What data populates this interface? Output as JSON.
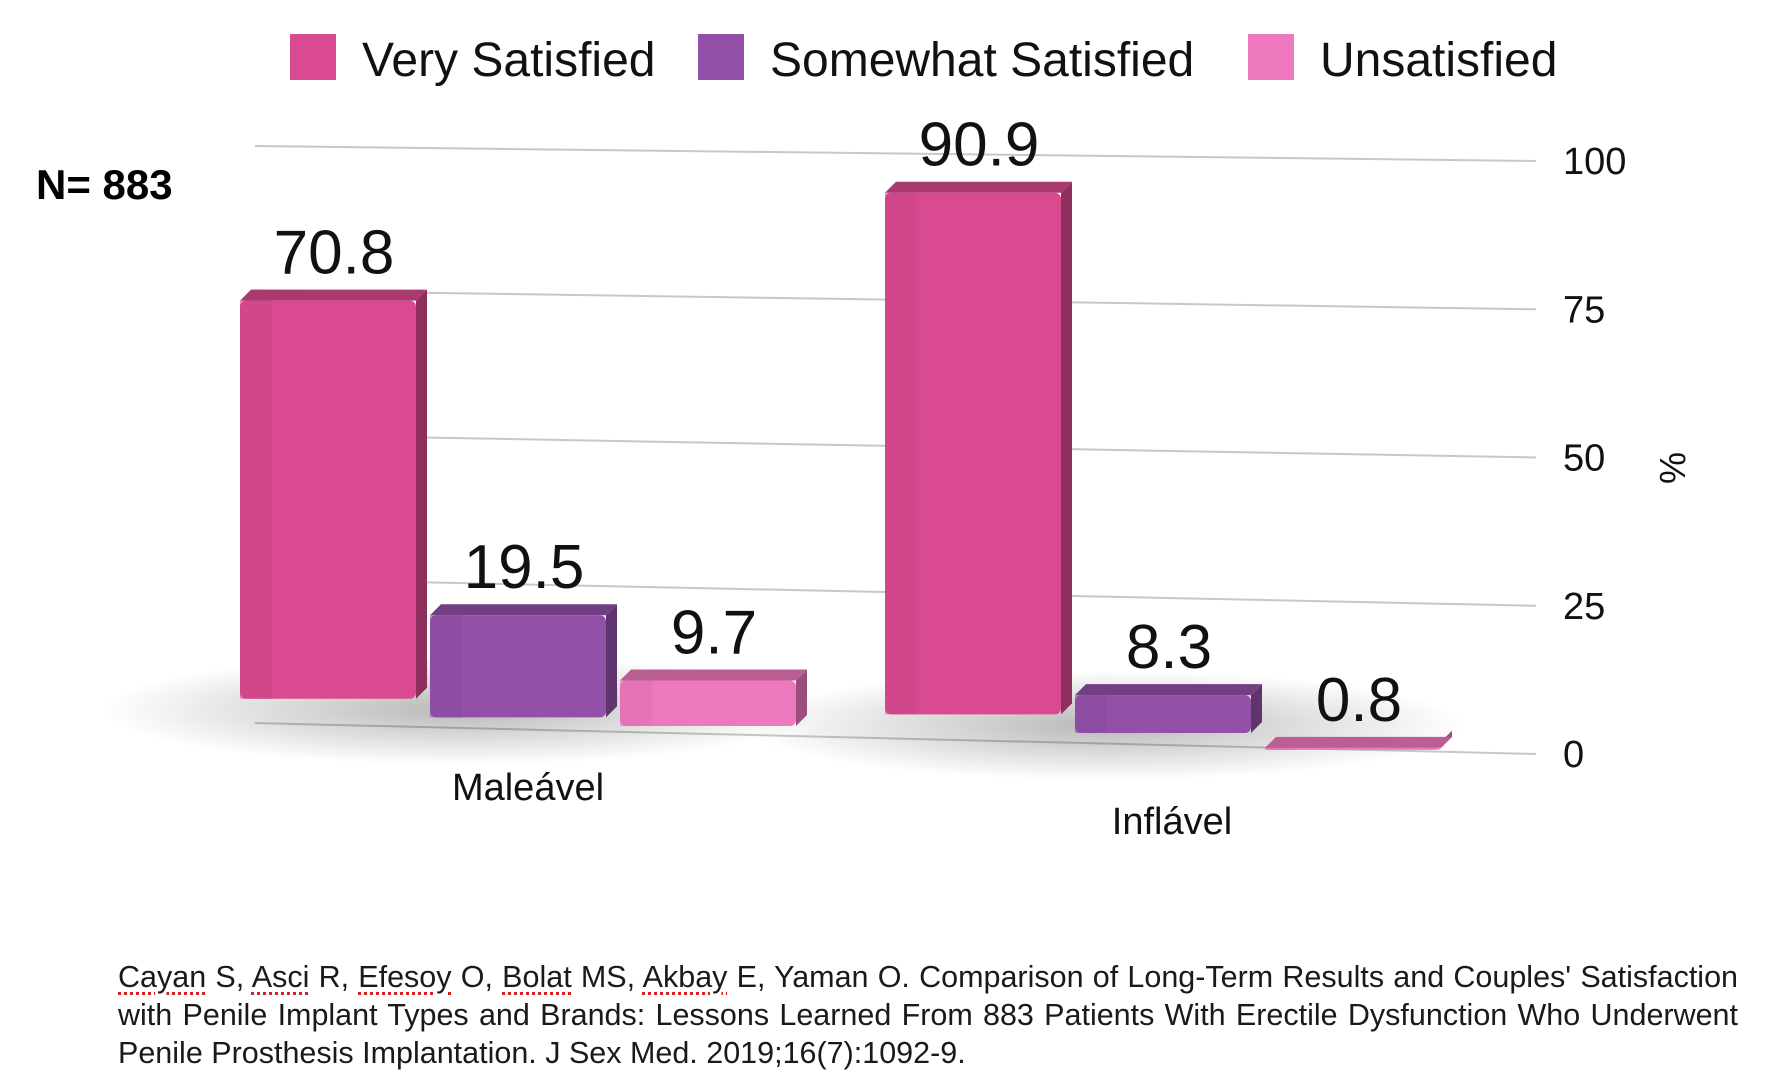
{
  "chart_data": {
    "type": "bar",
    "categories": [
      "Maleável",
      "Inflável"
    ],
    "series": [
      {
        "name": "Very Satisfied",
        "values": [
          70.8,
          90.9
        ],
        "color": "#d94a90"
      },
      {
        "name": "Somewhat Satisfied",
        "values": [
          19.5,
          8.3
        ],
        "color": "#9350a8"
      },
      {
        "name": "Unsatisfied",
        "values": [
          9.7,
          0.8
        ],
        "color": "#ee78be"
      }
    ],
    "data_labels": [
      [
        "70.8",
        "19.5",
        "9.7"
      ],
      [
        "90.9",
        "8.3",
        "0.8"
      ]
    ],
    "ylabel": "%",
    "ylim": [
      0,
      100
    ],
    "yticks": [
      0,
      25,
      50,
      75,
      100
    ],
    "ytick_labels": [
      "0",
      "25",
      "50",
      "75",
      "100"
    ],
    "y_axis_side": "right",
    "grid": true,
    "legend_position": "top",
    "annotation": "N= 883",
    "style": "3d"
  },
  "citation": {
    "authors": [
      {
        "name": "Cayan",
        "sep": " S, "
      },
      {
        "name": "Asci",
        "sep": " R, "
      },
      {
        "name": "Efesoy",
        "sep": " O, "
      },
      {
        "name": "Bolat",
        "sep": " MS, "
      },
      {
        "name": "Akbay",
        "sep": " E, "
      }
    ],
    "rest": "Yaman O. Comparison of Long-Term Results and Couples' Satisfaction with Penile Implant Types and Brands: Lessons Learned From 883 Patients With Erectile Dysfunction Who Underwent Penile Prosthesis Implantation. J Sex Med. 2019;16(7):1092-9."
  }
}
